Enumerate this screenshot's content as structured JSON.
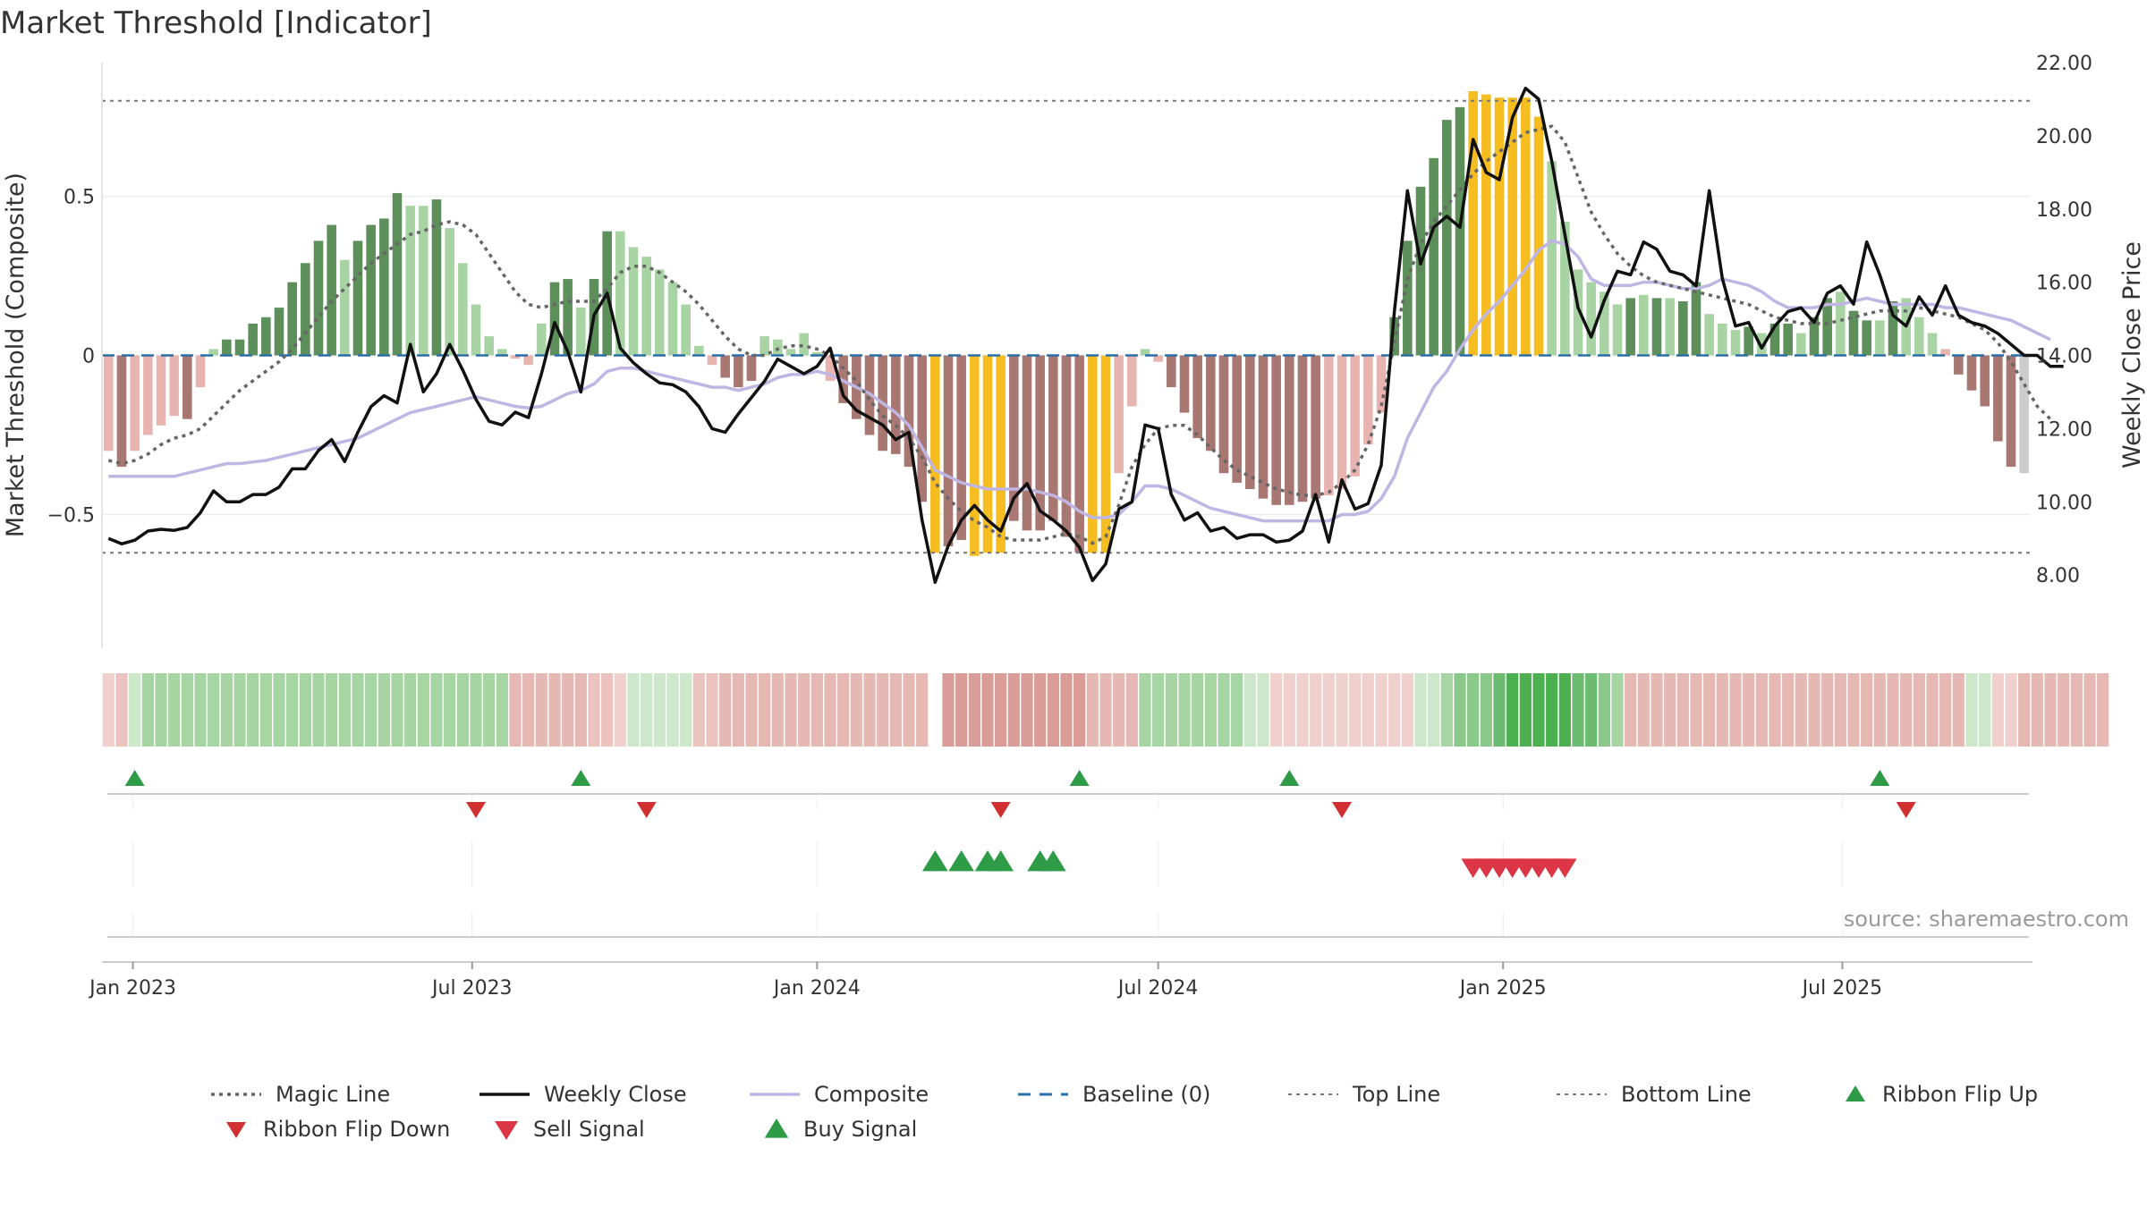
{
  "title": "Market Threshold [Indicator]",
  "source": "source: sharemaestro.com",
  "colors": {
    "strong_green": "#5c8f5a",
    "light_green": "#a8d4a4",
    "strong_red": "#a97772",
    "light_red": "#e8b4b0",
    "extreme": "#f5bd1f",
    "weekly_close": "#111111",
    "composite": "#bfb6e3",
    "magic_line": "#666666",
    "baseline": "#2a6fa8",
    "threshold_line": "#777777",
    "flip_up": "#2e9b47",
    "flip_down": "#d03030",
    "signal_buy": "#2e9b47",
    "signal_sell": "#dc3545"
  },
  "chart_data": {
    "type": "bar",
    "title": "Market Threshold [Indicator]",
    "ylabel": "Market Threshold (Composite)",
    "y2label": "Weekly Close Price",
    "ylim": [
      -0.92,
      0.92
    ],
    "y2lim": [
      6.0,
      22.0
    ],
    "yticks": [
      -0.5,
      0,
      0.5
    ],
    "yticklabels": [
      "−0.5",
      "0",
      "0.5"
    ],
    "y2ticks": [
      8,
      10,
      12,
      14,
      16,
      18,
      20,
      22
    ],
    "y2ticklabels": [
      "8.00",
      "10.00",
      "12.00",
      "14.00",
      "16.00",
      "18.00",
      "20.00",
      "22.00"
    ],
    "x_start": "2022-12-19",
    "xticks": [
      "2023-01-01",
      "2023-07-01",
      "2024-01-01",
      "2024-07-01",
      "2025-01-01",
      "2025-07-01"
    ],
    "xticklabels": [
      "Jan 2023",
      "Jul 2023",
      "Jan 2024",
      "Jul 2024",
      "Jan 2025",
      "Jul 2025"
    ],
    "top_line": 0.8,
    "bottom_line": -0.62,
    "grid": true,
    "legend_position": "bottom",
    "histogram": [
      -0.3,
      -0.35,
      -0.3,
      -0.25,
      -0.22,
      -0.19,
      -0.2,
      -0.1,
      0.02,
      0.05,
      0.05,
      0.1,
      0.12,
      0.15,
      0.23,
      0.29,
      0.36,
      0.41,
      0.3,
      0.36,
      0.41,
      0.43,
      0.51,
      0.47,
      0.47,
      0.49,
      0.4,
      0.29,
      0.16,
      0.06,
      0.02,
      -0.01,
      -0.03,
      0.1,
      0.23,
      0.24,
      0.15,
      0.24,
      0.39,
      0.39,
      0.34,
      0.31,
      0.27,
      0.23,
      0.16,
      0.03,
      -0.03,
      -0.07,
      -0.1,
      -0.08,
      0.06,
      0.05,
      0.02,
      0.07,
      0.01,
      -0.08,
      -0.15,
      -0.2,
      -0.25,
      -0.3,
      -0.31,
      -0.35,
      -0.46,
      -0.62,
      -0.6,
      -0.58,
      -0.63,
      -0.62,
      -0.62,
      -0.52,
      -0.55,
      -0.55,
      -0.52,
      -0.57,
      -0.62,
      -0.62,
      -0.62,
      -0.37,
      -0.16,
      0.02,
      -0.02,
      -0.1,
      -0.18,
      -0.26,
      -0.3,
      -0.37,
      -0.4,
      -0.42,
      -0.45,
      -0.47,
      -0.47,
      -0.46,
      -0.45,
      -0.44,
      -0.42,
      -0.38,
      -0.28,
      -0.18,
      0.12,
      0.36,
      0.53,
      0.62,
      0.74,
      0.78,
      0.83,
      0.82,
      0.81,
      0.81,
      0.81,
      0.75,
      0.61,
      0.42,
      0.27,
      0.23,
      0.2,
      0.16,
      0.18,
      0.19,
      0.18,
      0.18,
      0.17,
      0.23,
      0.13,
      0.1,
      0.08,
      0.09,
      0.07,
      0.1,
      0.1,
      0.07,
      0.12,
      0.18,
      0.2,
      0.14,
      0.11,
      0.11,
      0.17,
      0.18,
      0.12,
      0.07,
      0.02,
      -0.06,
      -0.11,
      -0.16,
      -0.27,
      -0.35,
      -0.37
    ],
    "histogram_colors": [
      "light_red",
      "strong_red",
      "light_red",
      "light_red",
      "light_red",
      "light_red",
      "strong_red",
      "light_red",
      "light_green",
      "strong_green",
      "strong_green",
      "strong_green",
      "strong_green",
      "strong_green",
      "strong_green",
      "strong_green",
      "strong_green",
      "strong_green",
      "light_green",
      "strong_green",
      "strong_green",
      "strong_green",
      "strong_green",
      "light_green",
      "light_green",
      "strong_green",
      "light_green",
      "light_green",
      "light_green",
      "light_green",
      "light_green",
      "light_red",
      "light_red",
      "light_green",
      "strong_green",
      "strong_green",
      "light_green",
      "strong_green",
      "strong_green",
      "light_green",
      "light_green",
      "light_green",
      "light_green",
      "light_green",
      "light_green",
      "light_green",
      "light_red",
      "strong_red",
      "strong_red",
      "strong_red",
      "light_green",
      "light_green",
      "light_green",
      "light_green",
      "light_green",
      "light_red",
      "strong_red",
      "strong_red",
      "strong_red",
      "strong_red",
      "strong_red",
      "strong_red",
      "strong_red",
      "extreme",
      "strong_red",
      "strong_red",
      "extreme",
      "extreme",
      "extreme",
      "strong_red",
      "strong_red",
      "strong_red",
      "strong_red",
      "strong_red",
      "strong_red",
      "extreme",
      "extreme",
      "light_red",
      "light_red",
      "light_green",
      "light_red",
      "strong_red",
      "strong_red",
      "strong_red",
      "strong_red",
      "strong_red",
      "strong_red",
      "strong_red",
      "strong_red",
      "strong_red",
      "strong_red",
      "strong_red",
      "strong_red",
      "light_red",
      "light_red",
      "light_red",
      "light_red",
      "light_red",
      "strong_green",
      "strong_green",
      "strong_green",
      "strong_green",
      "strong_green",
      "strong_green",
      "extreme",
      "extreme",
      "extreme",
      "extreme",
      "extreme",
      "extreme",
      "light_green",
      "light_green",
      "light_green",
      "light_green",
      "light_green",
      "light_green",
      "strong_green",
      "light_green",
      "strong_green",
      "light_green",
      "strong_green",
      "strong_green",
      "light_green",
      "light_green",
      "light_green",
      "strong_green",
      "light_green",
      "strong_green",
      "strong_green",
      "light_green",
      "strong_green",
      "strong_green",
      "light_green",
      "strong_green",
      "strong_green",
      "light_green",
      "strong_green",
      "light_green",
      "light_green",
      "light_green",
      "light_red",
      "strong_red",
      "strong_red",
      "strong_red",
      "strong_red",
      "strong_red"
    ],
    "weekly_close": [
      9.0,
      8.85,
      8.95,
      9.2,
      9.25,
      9.22,
      9.3,
      9.7,
      10.3,
      10.0,
      10.0,
      10.2,
      10.2,
      10.4,
      10.9,
      10.9,
      11.4,
      11.7,
      11.1,
      11.9,
      12.6,
      12.9,
      12.7,
      14.3,
      13.0,
      13.5,
      14.3,
      13.6,
      12.8,
      12.2,
      12.1,
      12.45,
      12.3,
      13.5,
      14.9,
      14.1,
      13.0,
      15.1,
      15.7,
      14.2,
      13.8,
      13.5,
      13.25,
      13.2,
      13.0,
      12.6,
      12.0,
      11.9,
      12.4,
      12.85,
      13.3,
      13.9,
      13.7,
      13.5,
      13.7,
      14.2,
      12.9,
      12.5,
      12.3,
      12.1,
      11.7,
      11.9,
      9.5,
      7.8,
      8.8,
      9.5,
      9.9,
      9.5,
      9.2,
      10.1,
      10.5,
      9.75,
      9.5,
      9.2,
      8.75,
      7.85,
      8.3,
      9.8,
      10.0,
      12.1,
      12.0,
      10.2,
      9.5,
      9.7,
      9.2,
      9.3,
      9.0,
      9.1,
      9.1,
      8.9,
      8.95,
      9.2,
      10.2,
      8.9,
      10.6,
      9.8,
      9.95,
      11.0,
      15.2,
      18.5,
      16.5,
      17.5,
      17.8,
      17.5,
      19.9,
      19.0,
      18.8,
      20.5,
      21.3,
      21.0,
      19.3,
      17.3,
      15.3,
      14.5,
      15.5,
      16.3,
      16.2,
      17.1,
      16.9,
      16.3,
      16.2,
      15.9,
      18.5,
      16.1,
      14.8,
      14.9,
      14.2,
      14.8,
      15.2,
      15.3,
      14.9,
      15.7,
      15.9,
      15.4,
      17.1,
      16.2,
      15.1,
      14.8,
      15.6,
      15.1,
      15.9,
      15.1,
      14.9,
      14.8,
      14.6,
      14.3,
      14.0,
      14.0,
      13.7,
      13.7
    ],
    "composite": [
      -0.38,
      -0.38,
      -0.38,
      -0.38,
      -0.38,
      -0.38,
      -0.37,
      -0.36,
      -0.35,
      -0.34,
      -0.34,
      -0.335,
      -0.33,
      -0.32,
      -0.31,
      -0.3,
      -0.29,
      -0.28,
      -0.27,
      -0.26,
      -0.24,
      -0.22,
      -0.2,
      -0.18,
      -0.17,
      -0.16,
      -0.15,
      -0.14,
      -0.13,
      -0.14,
      -0.15,
      -0.16,
      -0.165,
      -0.16,
      -0.14,
      -0.12,
      -0.11,
      -0.09,
      -0.05,
      -0.04,
      -0.04,
      -0.05,
      -0.06,
      -0.07,
      -0.08,
      -0.09,
      -0.1,
      -0.1,
      -0.11,
      -0.1,
      -0.09,
      -0.07,
      -0.06,
      -0.06,
      -0.05,
      -0.06,
      -0.08,
      -0.1,
      -0.12,
      -0.15,
      -0.18,
      -0.22,
      -0.29,
      -0.36,
      -0.38,
      -0.4,
      -0.41,
      -0.42,
      -0.42,
      -0.42,
      -0.42,
      -0.43,
      -0.44,
      -0.46,
      -0.49,
      -0.51,
      -0.51,
      -0.5,
      -0.46,
      -0.41,
      -0.41,
      -0.42,
      -0.44,
      -0.46,
      -0.48,
      -0.49,
      -0.5,
      -0.51,
      -0.52,
      -0.52,
      -0.52,
      -0.52,
      -0.52,
      -0.52,
      -0.5,
      -0.5,
      -0.49,
      -0.45,
      -0.38,
      -0.26,
      -0.18,
      -0.1,
      -0.05,
      0.02,
      0.08,
      0.13,
      0.17,
      0.22,
      0.27,
      0.33,
      0.36,
      0.35,
      0.31,
      0.24,
      0.22,
      0.22,
      0.22,
      0.23,
      0.23,
      0.22,
      0.21,
      0.21,
      0.22,
      0.24,
      0.23,
      0.22,
      0.2,
      0.17,
      0.15,
      0.15,
      0.15,
      0.16,
      0.16,
      0.17,
      0.18,
      0.17,
      0.16,
      0.16,
      0.16,
      0.16,
      0.15,
      0.15,
      0.14,
      0.13,
      0.12,
      0.11,
      0.09,
      0.07,
      0.05
    ],
    "magic_line": [
      -0.33,
      -0.34,
      -0.33,
      -0.31,
      -0.28,
      -0.26,
      -0.25,
      -0.23,
      -0.19,
      -0.15,
      -0.11,
      -0.08,
      -0.05,
      -0.02,
      0.02,
      0.07,
      0.12,
      0.17,
      0.21,
      0.25,
      0.29,
      0.32,
      0.35,
      0.38,
      0.39,
      0.41,
      0.42,
      0.41,
      0.38,
      0.32,
      0.26,
      0.2,
      0.16,
      0.15,
      0.16,
      0.17,
      0.17,
      0.17,
      0.21,
      0.26,
      0.28,
      0.28,
      0.26,
      0.23,
      0.2,
      0.16,
      0.11,
      0.06,
      0.02,
      0.0,
      0.0,
      0.02,
      0.03,
      0.03,
      0.02,
      0.0,
      -0.04,
      -0.08,
      -0.14,
      -0.19,
      -0.22,
      -0.26,
      -0.32,
      -0.4,
      -0.45,
      -0.49,
      -0.52,
      -0.54,
      -0.57,
      -0.58,
      -0.58,
      -0.58,
      -0.57,
      -0.56,
      -0.57,
      -0.59,
      -0.57,
      -0.47,
      -0.35,
      -0.28,
      -0.23,
      -0.22,
      -0.22,
      -0.25,
      -0.29,
      -0.33,
      -0.36,
      -0.38,
      -0.4,
      -0.42,
      -0.43,
      -0.44,
      -0.44,
      -0.43,
      -0.4,
      -0.36,
      -0.28,
      -0.16,
      0.04,
      0.24,
      0.35,
      0.42,
      0.47,
      0.52,
      0.57,
      0.61,
      0.64,
      0.67,
      0.7,
      0.71,
      0.72,
      0.67,
      0.56,
      0.45,
      0.38,
      0.32,
      0.28,
      0.25,
      0.23,
      0.22,
      0.21,
      0.2,
      0.19,
      0.18,
      0.17,
      0.16,
      0.14,
      0.12,
      0.11,
      0.1,
      0.1,
      0.1,
      0.11,
      0.12,
      0.13,
      0.14,
      0.14,
      0.14,
      0.15,
      0.14,
      0.13,
      0.12,
      0.1,
      0.08,
      0.04,
      -0.02,
      -0.09,
      -0.16,
      -0.2
    ],
    "ribbon_colors": [
      "#f0d0cd",
      "#ecc2be",
      "#cde7cb",
      "#a6d5a3",
      "#a6d5a3",
      "#a6d5a3",
      "#a6d5a3",
      "#a6d5a3",
      "#a6d5a3",
      "#a6d5a3",
      "#a6d5a3",
      "#a6d5a3",
      "#a6d5a3",
      "#a6d5a3",
      "#a6d5a3",
      "#a6d5a3",
      "#a6d5a3",
      "#a6d5a3",
      "#a6d5a3",
      "#a6d5a3",
      "#a6d5a3",
      "#a6d5a3",
      "#a6d5a3",
      "#a6d5a3",
      "#a6d5a3",
      "#a6d5a3",
      "#a6d5a3",
      "#a6d5a3",
      "#a6d5a3",
      "#a6d5a3",
      "#a6d5a3",
      "#e6b8b4",
      "#e6b8b4",
      "#e6b8b4",
      "#e6b8b4",
      "#e6b8b4",
      "#e6b8b4",
      "#ecc2be",
      "#ecc2be",
      "#f0d0cd",
      "#cde7cb",
      "#cde7cb",
      "#cde7cb",
      "#cde7cb",
      "#cde7cb",
      "#ecc2be",
      "#ecc2be",
      "#e6b8b4",
      "#e6b8b4",
      "#e6b8b4",
      "#e6b8b4",
      "#e6b8b4",
      "#e6b8b4",
      "#e6b8b4",
      "#e6b8b4",
      "#e6b8b4",
      "#e6b8b4",
      "#e6b8b4",
      "#e6b8b4",
      "#e6b8b4",
      "#e6b8b4",
      "#e6b8b4",
      "#e6b8b4",
      "#ffffff",
      "#d99c96",
      "#d99c96",
      "#d99c96",
      "#d99c96",
      "#d99c96",
      "#d99c96",
      "#d99c96",
      "#d99c96",
      "#d99c96",
      "#d99c96",
      "#d99c96",
      "#e6b8b4",
      "#e6b8b4",
      "#e6b8b4",
      "#e6b8b4",
      "#a6d5a3",
      "#a6d5a3",
      "#a6d5a3",
      "#a6d5a3",
      "#a6d5a3",
      "#a6d5a3",
      "#a6d5a3",
      "#a6d5a3",
      "#cde7cb",
      "#cde7cb",
      "#f0d0cd",
      "#f0d0cd",
      "#f0d0cd",
      "#f0d0cd",
      "#f0d0cd",
      "#f0d0cd",
      "#f0d0cd",
      "#f0d0cd",
      "#f0d0cd",
      "#f0d0cd",
      "#f0d0cd",
      "#cde7cb",
      "#cde7cb",
      "#a6d5a3",
      "#8ac98a",
      "#8ac98a",
      "#8ac98a",
      "#6cbb70",
      "#4caf50",
      "#4caf50",
      "#4caf50",
      "#4caf50",
      "#4caf50",
      "#6cbb70",
      "#6cbb70",
      "#8ac98a",
      "#a6d5a3",
      "#e6b8b4",
      "#e6b8b4",
      "#e6b8b4",
      "#e6b8b4",
      "#e6b8b4",
      "#e6b8b4",
      "#e6b8b4",
      "#e6b8b4",
      "#e6b8b4",
      "#e6b8b4",
      "#e6b8b4",
      "#e6b8b4",
      "#e6b8b4",
      "#e6b8b4",
      "#e6b8b4",
      "#e6b8b4",
      "#e6b8b4",
      "#e6b8b4",
      "#e6b8b4",
      "#e6b8b4",
      "#e6b8b4",
      "#e6b8b4",
      "#e6b8b4",
      "#e6b8b4",
      "#e6b8b4",
      "#e6b8b4",
      "#cde7cb",
      "#cde7cb",
      "#f0d0cd",
      "#f0d0cd",
      "#e6b8b4",
      "#e6b8b4",
      "#e6b8b4",
      "#e6b8b4",
      "#e6b8b4",
      "#e6b8b4",
      "#e6b8b4"
    ],
    "ribbon_flip_up": [
      2,
      36,
      74,
      90,
      135
    ],
    "ribbon_flip_down": [
      28,
      41,
      68,
      94,
      137
    ],
    "buy_signals": [
      63,
      65,
      67,
      68,
      71,
      72
    ],
    "sell_signals": [
      104,
      105,
      106,
      107,
      108,
      109,
      110,
      111
    ],
    "legend": [
      {
        "label": "Magic Line",
        "style": "dotted"
      },
      {
        "label": "Weekly Close",
        "style": "solid-black"
      },
      {
        "label": "Composite",
        "style": "solid-lavender"
      },
      {
        "label": "Baseline (0)",
        "style": "dashed-blue"
      },
      {
        "label": "Top Line",
        "style": "dotted-grey"
      },
      {
        "label": "Bottom Line",
        "style": "dotted-grey"
      },
      {
        "label": "Ribbon Flip Up",
        "style": "tri-up-green"
      },
      {
        "label": "Ribbon Flip Down",
        "style": "tri-down-red"
      },
      {
        "label": "Sell Signal",
        "style": "tri-down-pink"
      },
      {
        "label": "Buy Signal",
        "style": "tri-up-green"
      }
    ]
  }
}
